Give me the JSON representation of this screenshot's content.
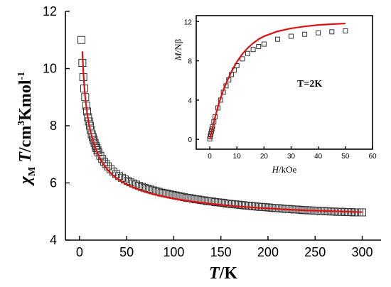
{
  "chart_data": [
    {
      "type": "scatter",
      "title": "",
      "xlabel": {
        "var": "T",
        "unit": "/K"
      },
      "ylabel": {
        "var": "χ",
        "sub": "M",
        "var2": " T",
        "unit_pre": "/cm",
        "sup": "3",
        "unit_post": "Kmol",
        "sup2": "-1"
      },
      "xlim": [
        -15,
        320
      ],
      "ylim": [
        4,
        12
      ],
      "x_ticks": [
        0,
        50,
        100,
        150,
        200,
        250,
        300
      ],
      "y_ticks": [
        4,
        6,
        8,
        10,
        12
      ],
      "grid": false,
      "legend": "none",
      "series": [
        {
          "kind": "markers",
          "marker": "open-square",
          "x": [
            2,
            3,
            4,
            5,
            6,
            7,
            8,
            9,
            10,
            11,
            12,
            13,
            14,
            15,
            16,
            17,
            18,
            19,
            20,
            22,
            24,
            26,
            28,
            30,
            33,
            36,
            39,
            42,
            45,
            48,
            51,
            54,
            57,
            60,
            63,
            66,
            69,
            72,
            75,
            78,
            81,
            84,
            87,
            90,
            93,
            96,
            99,
            102,
            105,
            108,
            111,
            114,
            117,
            120,
            123,
            126,
            129,
            132,
            135,
            138,
            141,
            144,
            147,
            150,
            153,
            156,
            159,
            162,
            165,
            168,
            171,
            174,
            177,
            180,
            183,
            186,
            189,
            192,
            195,
            198,
            201,
            204,
            207,
            210,
            213,
            216,
            219,
            222,
            225,
            228,
            231,
            234,
            237,
            240,
            243,
            246,
            249,
            252,
            255,
            258,
            261,
            264,
            267,
            270,
            273,
            276,
            279,
            282,
            285,
            288,
            291,
            294,
            297,
            300
          ],
          "y": [
            11.0,
            10.2,
            9.7,
            9.3,
            9.0,
            8.7,
            8.5,
            8.3,
            8.15,
            8.0,
            7.85,
            7.7,
            7.6,
            7.5,
            7.4,
            7.3,
            7.22,
            7.14,
            7.07,
            6.95,
            6.84,
            6.74,
            6.66,
            6.58,
            6.48,
            6.39,
            6.31,
            6.24,
            6.18,
            6.12,
            6.07,
            6.02,
            5.98,
            5.94,
            5.9,
            5.86,
            5.83,
            5.8,
            5.77,
            5.74,
            5.71,
            5.69,
            5.66,
            5.64,
            5.62,
            5.6,
            5.58,
            5.56,
            5.54,
            5.52,
            5.5,
            5.48,
            5.47,
            5.45,
            5.43,
            5.42,
            5.4,
            5.39,
            5.37,
            5.36,
            5.35,
            5.33,
            5.32,
            5.31,
            5.3,
            5.28,
            5.27,
            5.26,
            5.25,
            5.24,
            5.23,
            5.22,
            5.21,
            5.2,
            5.19,
            5.18,
            5.17,
            5.16,
            5.16,
            5.15,
            5.14,
            5.13,
            5.12,
            5.12,
            5.11,
            5.1,
            5.09,
            5.09,
            5.08,
            5.07,
            5.07,
            5.06,
            5.05,
            5.05,
            5.04,
            5.04,
            5.03,
            5.03,
            5.02,
            5.02,
            5.01,
            5.01,
            5.0,
            5.0,
            4.99,
            4.99,
            4.99,
            4.98,
            4.98,
            4.98,
            4.97,
            4.97,
            4.97,
            4.97
          ]
        },
        {
          "kind": "fit-line",
          "color": "#e31010",
          "x": [
            3,
            4,
            5,
            6,
            8,
            10,
            12,
            15,
            18,
            22,
            26,
            30,
            35,
            40,
            50,
            60,
            70,
            80,
            100,
            120,
            140,
            160,
            180,
            200,
            220,
            240,
            260,
            280,
            300
          ],
          "y": [
            10.6,
            9.9,
            9.4,
            9.0,
            8.45,
            8.05,
            7.75,
            7.4,
            7.12,
            6.83,
            6.62,
            6.45,
            6.28,
            6.15,
            5.95,
            5.8,
            5.68,
            5.59,
            5.45,
            5.35,
            5.27,
            5.2,
            5.15,
            5.11,
            5.07,
            5.04,
            5.02,
            5.0,
            4.98
          ]
        }
      ]
    },
    {
      "type": "scatter",
      "role": "inset",
      "title": "",
      "xlabel": {
        "var": "H",
        "unit": "/kOe"
      },
      "ylabel": {
        "var": "M",
        "unit": "/Nβ"
      },
      "xlim": [
        -5,
        60
      ],
      "ylim": [
        -1,
        12.6
      ],
      "x_ticks": [
        0,
        10,
        20,
        30,
        40,
        50,
        60
      ],
      "y_ticks": [
        0,
        4,
        8,
        12
      ],
      "grid": false,
      "legend": "none",
      "annotation": "T=2K",
      "series": [
        {
          "kind": "markers",
          "marker": "open-square",
          "x": [
            0,
            0.2,
            0.4,
            0.6,
            0.8,
            1.0,
            1.5,
            2,
            3,
            4,
            5,
            6,
            7,
            8,
            9,
            10,
            12,
            14,
            16,
            18,
            20,
            25,
            30,
            35,
            40,
            45,
            50
          ],
          "y": [
            0.05,
            0.3,
            0.55,
            0.8,
            1.05,
            1.3,
            1.8,
            2.3,
            3.2,
            4.0,
            4.8,
            5.45,
            6.05,
            6.6,
            7.05,
            7.5,
            8.2,
            8.75,
            9.15,
            9.45,
            9.7,
            10.2,
            10.5,
            10.7,
            10.85,
            10.95,
            11.05
          ]
        },
        {
          "kind": "fit-line",
          "color": "#e31010",
          "x": [
            0,
            0.5,
            1,
            2,
            3,
            4,
            5,
            6,
            8,
            10,
            12,
            14,
            16,
            18,
            20,
            25,
            30,
            35,
            40,
            45,
            50
          ],
          "y": [
            0,
            0.6,
            1.2,
            2.3,
            3.3,
            4.2,
            5.0,
            5.7,
            6.9,
            7.9,
            8.7,
            9.3,
            9.8,
            10.2,
            10.5,
            11.0,
            11.3,
            11.5,
            11.65,
            11.73,
            11.8
          ]
        }
      ]
    }
  ]
}
